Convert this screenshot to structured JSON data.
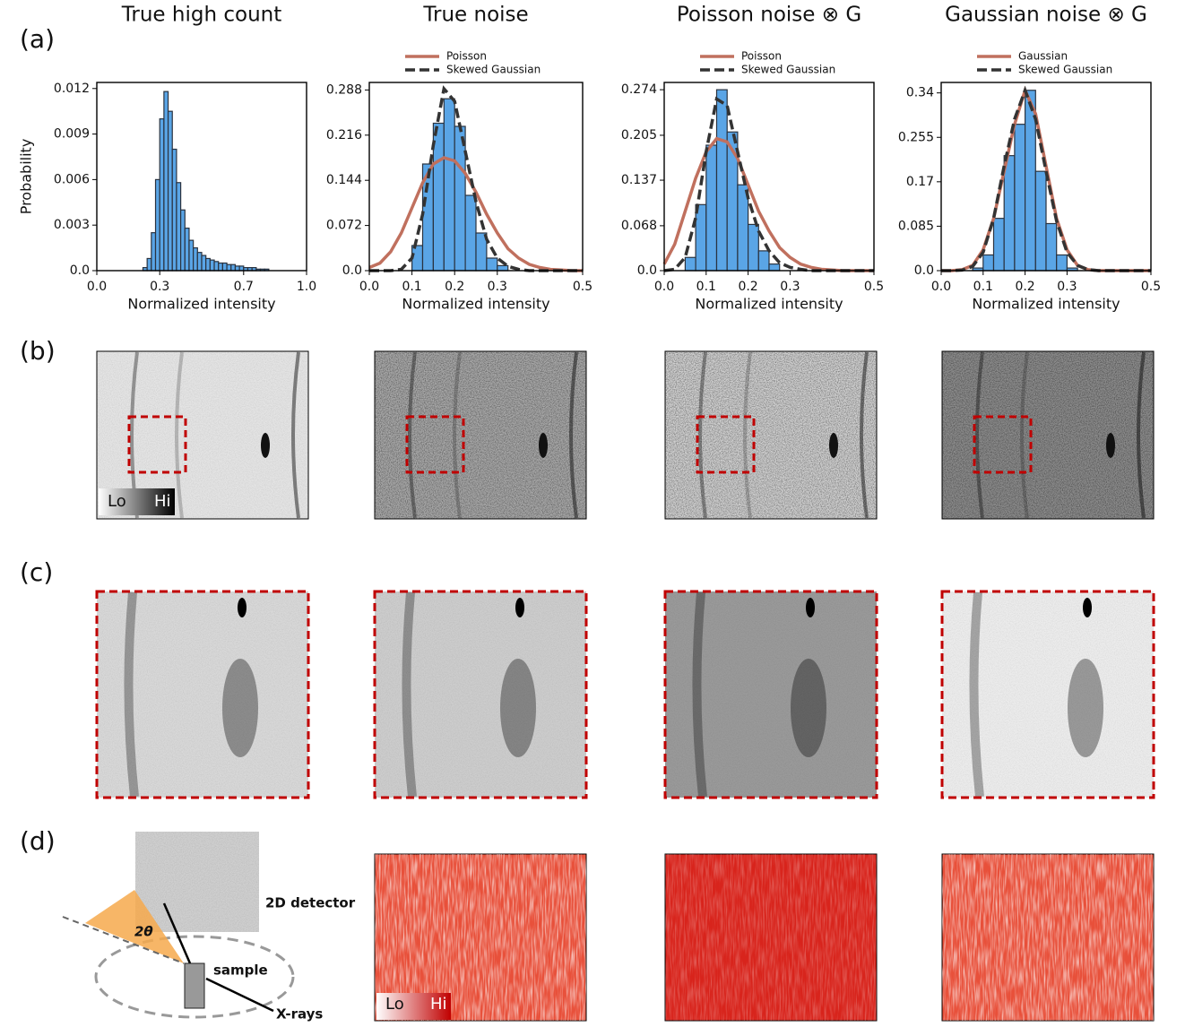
{
  "panel_labels": [
    "(a)",
    "(b)",
    "(c)",
    "(d)"
  ],
  "chart_data": [
    {
      "type": "histogram",
      "title": "True high count",
      "xlabel": "Normalized intensity",
      "ylabel": "Probability",
      "color": "#5aa5e6",
      "bins": [
        0.22,
        0.24,
        0.26,
        0.28,
        0.3,
        0.32,
        0.34,
        0.36,
        0.38,
        0.4,
        0.42,
        0.44,
        0.46,
        0.48,
        0.5,
        0.52,
        0.54,
        0.56,
        0.58,
        0.6,
        0.62,
        0.64,
        0.66,
        0.68,
        0.7,
        0.72,
        0.74,
        0.76,
        0.78,
        0.8,
        0.82
      ],
      "values": [
        0.0002,
        0.0008,
        0.0025,
        0.006,
        0.01,
        0.0118,
        0.0105,
        0.008,
        0.0058,
        0.004,
        0.0028,
        0.002,
        0.0015,
        0.0012,
        0.001,
        0.0008,
        0.0007,
        0.0006,
        0.0005,
        0.0005,
        0.0004,
        0.0004,
        0.0003,
        0.0003,
        0.0002,
        0.0002,
        0.0002,
        0.0001,
        0.0001,
        0.0001
      ],
      "xlim": [
        0,
        1
      ],
      "ylim": [
        0,
        0.0124
      ],
      "xticks": [
        {
          "value": 0,
          "label": "0.0"
        },
        0.3,
        0.7,
        {
          "value": 1,
          "label": "1.0"
        }
      ],
      "yticks": [
        {
          "value": 0,
          "label": "0.0"
        },
        0.003,
        0.006,
        0.009,
        0.012
      ]
    },
    {
      "type": "histogram",
      "title": "True noise",
      "xlabel": "Normalized intensity",
      "color": "#5aa5e6",
      "bins": [
        0.1,
        0.125,
        0.15,
        0.175,
        0.2,
        0.225,
        0.25,
        0.275,
        0.3,
        0.325
      ],
      "values": [
        0.04,
        0.17,
        0.235,
        0.274,
        0.23,
        0.12,
        0.06,
        0.02,
        0.008
      ],
      "xlim": [
        0,
        0.5
      ],
      "ylim": [
        0,
        0.3
      ],
      "xticks": [
        {
          "value": 0,
          "label": "0.0"
        },
        0.1,
        0.2,
        0.3,
        0.5
      ],
      "yticks": [
        {
          "value": 0,
          "label": "0.0"
        },
        0.072,
        0.144,
        0.216,
        0.288
      ],
      "series": [
        {
          "name": "Poisson",
          "color": "#c0705e",
          "linestyle": "solid",
          "x": [
            0,
            0.025,
            0.05,
            0.075,
            0.1,
            0.125,
            0.15,
            0.175,
            0.2,
            0.225,
            0.25,
            0.275,
            0.3,
            0.325,
            0.35,
            0.375,
            0.4,
            0.425,
            0.45,
            0.475,
            0.5
          ],
          "values": [
            0.005,
            0.012,
            0.03,
            0.06,
            0.1,
            0.14,
            0.17,
            0.18,
            0.175,
            0.155,
            0.125,
            0.09,
            0.06,
            0.035,
            0.02,
            0.01,
            0.005,
            0.002,
            0.001,
            0,
            0
          ]
        },
        {
          "name": "Skewed Gaussian",
          "color": "#333333",
          "linestyle": "dashed",
          "x": [
            0,
            0.025,
            0.05,
            0.075,
            0.1,
            0.125,
            0.15,
            0.175,
            0.2,
            0.225,
            0.25,
            0.275,
            0.3,
            0.325,
            0.35,
            0.375,
            0.4,
            0.425,
            0.45,
            0.475,
            0.5
          ],
          "values": [
            0,
            0,
            0,
            0.002,
            0.02,
            0.09,
            0.2,
            0.29,
            0.27,
            0.19,
            0.11,
            0.05,
            0.02,
            0.007,
            0.002,
            0,
            0,
            0,
            0,
            0,
            0
          ]
        }
      ]
    },
    {
      "type": "histogram",
      "title": "Poisson noise ⊗ G",
      "xlabel": "Normalized intensity",
      "color": "#5aa5e6",
      "bins": [
        0.05,
        0.075,
        0.1,
        0.125,
        0.15,
        0.175,
        0.2,
        0.225,
        0.25,
        0.275
      ],
      "values": [
        0.02,
        0.1,
        0.19,
        0.274,
        0.21,
        0.13,
        0.07,
        0.03,
        0.01
      ],
      "xlim": [
        0,
        0.5
      ],
      "ylim": [
        0,
        0.285
      ],
      "xticks": [
        {
          "value": 0,
          "label": "0.0"
        },
        0.1,
        0.2,
        0.3,
        0.5
      ],
      "yticks": [
        {
          "value": 0,
          "label": "0.0"
        },
        0.068,
        0.137,
        0.205,
        0.274
      ],
      "series": [
        {
          "name": "Poisson",
          "color": "#c0705e",
          "linestyle": "solid",
          "x": [
            0,
            0.025,
            0.05,
            0.075,
            0.1,
            0.125,
            0.15,
            0.175,
            0.2,
            0.225,
            0.25,
            0.275,
            0.3,
            0.325,
            0.35,
            0.375,
            0.4,
            0.425,
            0.45,
            0.475,
            0.5
          ],
          "values": [
            0.01,
            0.04,
            0.09,
            0.14,
            0.18,
            0.2,
            0.195,
            0.17,
            0.13,
            0.09,
            0.06,
            0.035,
            0.02,
            0.01,
            0.005,
            0.002,
            0.001,
            0,
            0,
            0,
            0
          ]
        },
        {
          "name": "Skewed Gaussian",
          "color": "#333333",
          "linestyle": "dashed",
          "x": [
            0,
            0.025,
            0.05,
            0.075,
            0.1,
            0.125,
            0.15,
            0.175,
            0.2,
            0.225,
            0.25,
            0.275,
            0.3,
            0.325,
            0.35,
            0.375,
            0.4,
            0.425,
            0.45,
            0.475,
            0.5
          ],
          "values": [
            0,
            0.002,
            0.02,
            0.08,
            0.18,
            0.26,
            0.25,
            0.18,
            0.11,
            0.06,
            0.03,
            0.012,
            0.005,
            0.002,
            0,
            0,
            0,
            0,
            0,
            0,
            0
          ]
        }
      ]
    },
    {
      "type": "histogram",
      "title": "Gaussian noise ⊗ G",
      "xlabel": "Normalized intensity",
      "color": "#5aa5e6",
      "bins": [
        0.075,
        0.1,
        0.125,
        0.15,
        0.175,
        0.2,
        0.225,
        0.25,
        0.275,
        0.3,
        0.325
      ],
      "values": [
        0.005,
        0.03,
        0.1,
        0.22,
        0.28,
        0.345,
        0.19,
        0.09,
        0.03,
        0.005
      ],
      "xlim": [
        0,
        0.5
      ],
      "ylim": [
        0,
        0.36
      ],
      "xticks": [
        {
          "value": 0,
          "label": "0.0"
        },
        0.1,
        0.2,
        0.3,
        0.5
      ],
      "yticks": [
        {
          "value": 0,
          "label": "0.0"
        },
        0.085,
        0.17,
        0.255,
        0.34
      ],
      "series": [
        {
          "name": "Gaussian",
          "color": "#c0705e",
          "linestyle": "solid",
          "x": [
            0,
            0.025,
            0.05,
            0.075,
            0.1,
            0.125,
            0.15,
            0.175,
            0.2,
            0.225,
            0.25,
            0.275,
            0.3,
            0.325,
            0.35,
            0.375,
            0.4,
            0.425,
            0.45,
            0.475,
            0.5
          ],
          "values": [
            0,
            0,
            0.002,
            0.01,
            0.04,
            0.1,
            0.19,
            0.28,
            0.345,
            0.3,
            0.2,
            0.1,
            0.04,
            0.01,
            0.002,
            0,
            0,
            0,
            0,
            0,
            0
          ]
        },
        {
          "name": "Skewed Gaussian",
          "color": "#333333",
          "linestyle": "dashed",
          "x": [
            0,
            0.025,
            0.05,
            0.075,
            0.1,
            0.125,
            0.15,
            0.175,
            0.2,
            0.225,
            0.25,
            0.275,
            0.3,
            0.325,
            0.35,
            0.375,
            0.4,
            0.425,
            0.45,
            0.475,
            0.5
          ],
          "values": [
            0,
            0,
            0.001,
            0.008,
            0.035,
            0.1,
            0.2,
            0.29,
            0.345,
            0.29,
            0.19,
            0.095,
            0.035,
            0.01,
            0.002,
            0,
            0,
            0,
            0,
            0,
            0
          ]
        }
      ]
    }
  ],
  "colorbar_gray": {
    "low": "Lo",
    "high": "Hi"
  },
  "colorbar_red": {
    "low": "Lo",
    "high": "Hi"
  },
  "diagram": {
    "detector": "2D detector",
    "angle": "2θ",
    "sample": "sample",
    "beam": "X-rays"
  }
}
